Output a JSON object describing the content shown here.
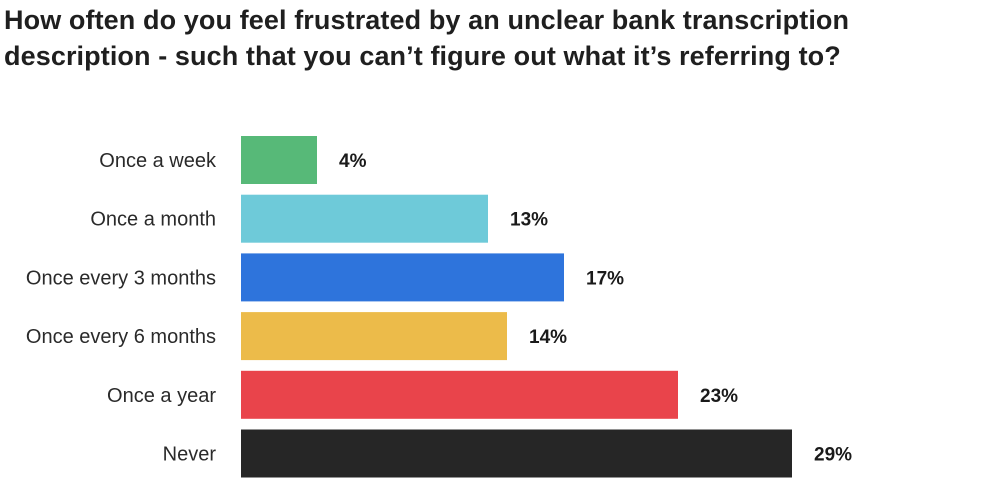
{
  "chart_data": {
    "type": "bar",
    "orientation": "horizontal",
    "title": "How often do you feel frustrated by an unclear bank transcription description - such that you can’t figure out what it’s referring to?",
    "categories": [
      "Once a week",
      "Once a month",
      "Once every 3 months",
      "Once every 6 months",
      "Once a year",
      "Never"
    ],
    "values": [
      4,
      13,
      17,
      14,
      23,
      29
    ],
    "value_labels": [
      "4%",
      "13%",
      "17%",
      "14%",
      "23%",
      "29%"
    ],
    "colors": [
      "#57b978",
      "#6ecad9",
      "#2e74dc",
      "#ecbb4a",
      "#e9444b",
      "#262626"
    ],
    "xlabel": "",
    "ylabel": "",
    "grid": false,
    "legend": "none"
  }
}
